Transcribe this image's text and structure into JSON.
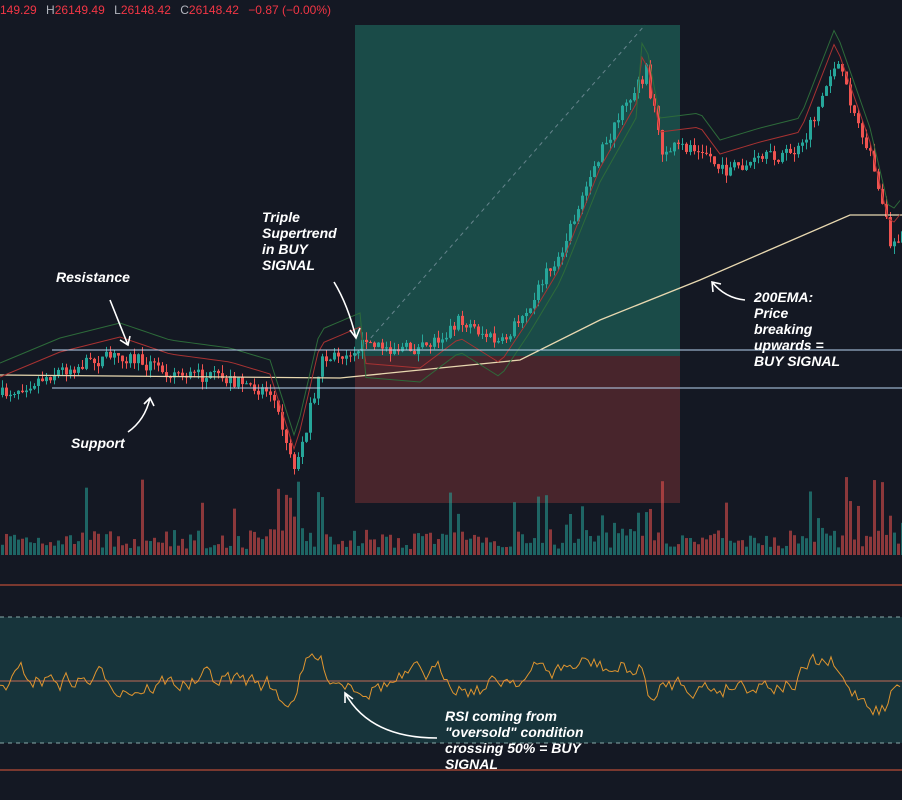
{
  "header": {
    "open": "149.29",
    "high_label": "H",
    "high": "26149.49",
    "low_label": "L",
    "low": "26148.42",
    "close_label": "C",
    "close": "26148.42",
    "change": "−0.87 (−0.00%)"
  },
  "annotations": {
    "supertrend": [
      "Triple",
      "Supertrend",
      "in BUY",
      "SIGNAL"
    ],
    "resistance": "Resistance",
    "support": "Support",
    "ema": [
      "200EMA:",
      "Price",
      "breaking",
      "upwards =",
      "BUY SIGNAL"
    ],
    "rsi": [
      "RSI coming from",
      "\"oversold\" condition",
      "crossing 50% = BUY",
      "SIGNAL"
    ]
  }
}
